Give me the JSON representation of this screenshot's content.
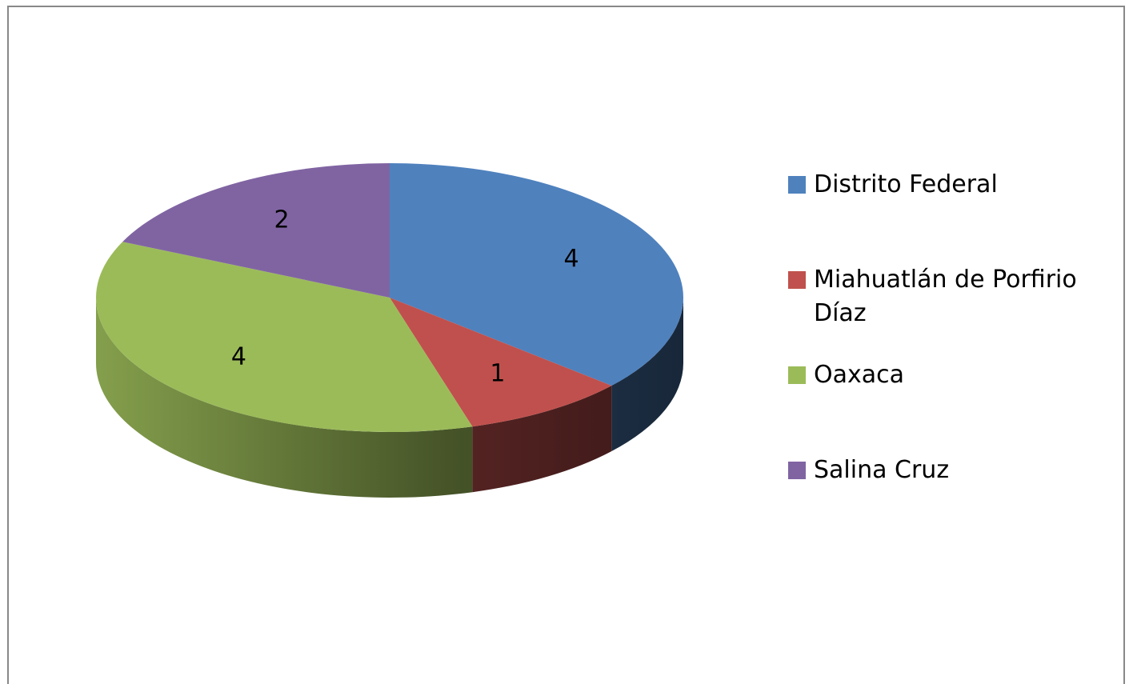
{
  "chart_data": {
    "type": "pie",
    "categories": [
      "Distrito Federal",
      "Miahuatlán de Porfirio Díaz",
      "Oaxaca",
      "Salina Cruz"
    ],
    "values": [
      4,
      1,
      4,
      2
    ],
    "colors": [
      "#4f81bd",
      "#c0504d",
      "#9bbb59",
      "#8064a2"
    ],
    "legend": "right"
  }
}
